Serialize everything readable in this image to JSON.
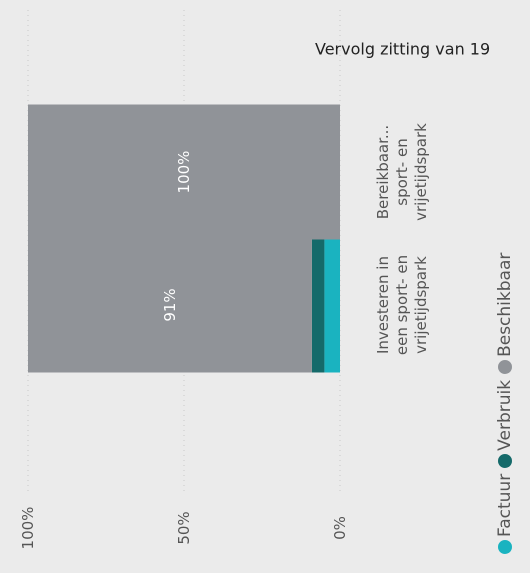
{
  "chart_data": {
    "type": "bar",
    "orientation": "horizontal",
    "stacked": true,
    "title": "Vervolg zitting van 19",
    "categories": [
      "Investeren in een sport- en vrijetijdspark",
      "Bereikbaar... sport- en vrijetijdspark"
    ],
    "series": [
      {
        "name": "Factuur",
        "color": "#1ab3c0",
        "values": [
          5,
          0
        ]
      },
      {
        "name": "Verbruik",
        "color": "#156a6a",
        "values": [
          4,
          0
        ]
      },
      {
        "name": "Beschikbaar",
        "color": "#909398",
        "values": [
          91,
          100
        ],
        "value_labels": [
          "91%",
          "100%"
        ]
      }
    ],
    "xlim": [
      0,
      100
    ],
    "xticks": [
      {
        "value": 0,
        "label": "0%"
      },
      {
        "value": 50,
        "label": "50%"
      },
      {
        "value": 100,
        "label": "100%"
      }
    ],
    "grid": true
  }
}
